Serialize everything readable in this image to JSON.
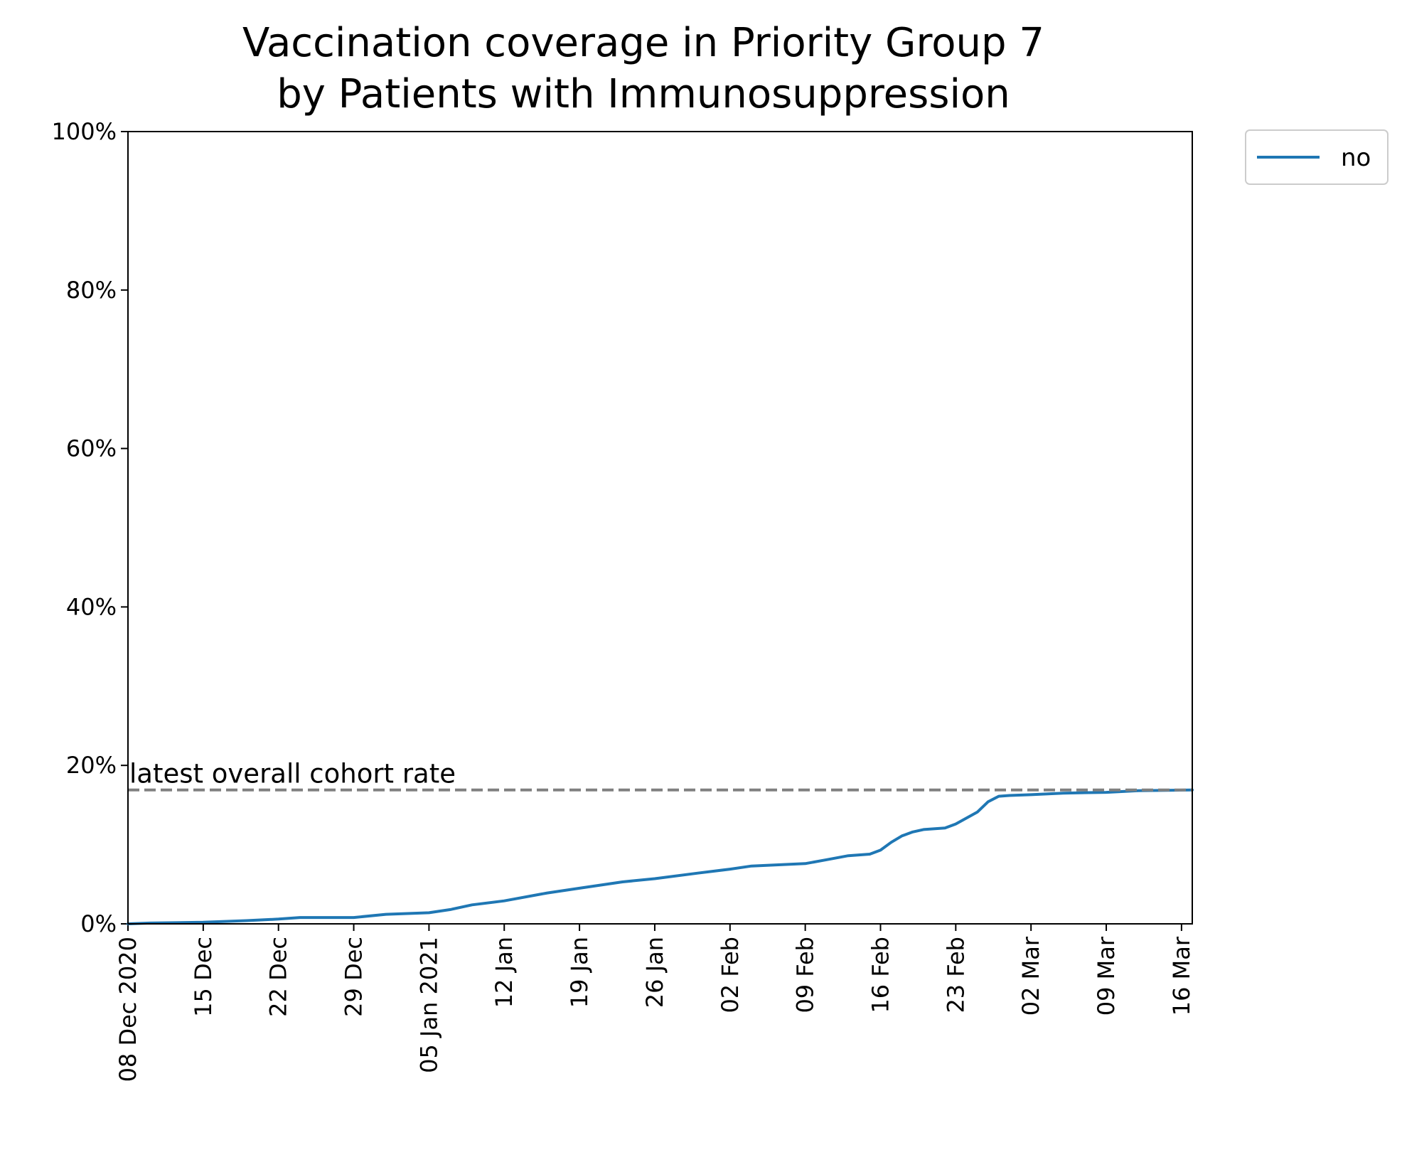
{
  "chart_data": {
    "type": "line",
    "title_line1": "Vaccination coverage in Priority Group 7",
    "title_line2": "by Patients with Immunosuppression",
    "xlabel": "",
    "ylabel": "",
    "xlim": [
      "2020-12-08",
      "2021-03-17"
    ],
    "ylim": [
      0,
      100
    ],
    "y_ticks": [
      {
        "value": 0,
        "label": "0%"
      },
      {
        "value": 20,
        "label": "20%"
      },
      {
        "value": 40,
        "label": "40%"
      },
      {
        "value": 60,
        "label": "60%"
      },
      {
        "value": 80,
        "label": "80%"
      },
      {
        "value": 100,
        "label": "100%"
      }
    ],
    "x_ticks": [
      {
        "date": "2020-12-08",
        "label": "08 Dec 2020"
      },
      {
        "date": "2020-12-15",
        "label": "15 Dec"
      },
      {
        "date": "2020-12-22",
        "label": "22 Dec"
      },
      {
        "date": "2020-12-29",
        "label": "29 Dec"
      },
      {
        "date": "2021-01-05",
        "label": "05 Jan 2021"
      },
      {
        "date": "2021-01-12",
        "label": "12 Jan"
      },
      {
        "date": "2021-01-19",
        "label": "19 Jan"
      },
      {
        "date": "2021-01-26",
        "label": "26 Jan"
      },
      {
        "date": "2021-02-02",
        "label": "02 Feb"
      },
      {
        "date": "2021-02-09",
        "label": "09 Feb"
      },
      {
        "date": "2021-02-16",
        "label": "16 Feb"
      },
      {
        "date": "2021-02-23",
        "label": "23 Feb"
      },
      {
        "date": "2021-03-02",
        "label": "02 Mar"
      },
      {
        "date": "2021-03-09",
        "label": "09 Mar"
      },
      {
        "date": "2021-03-16",
        "label": "16 Mar"
      }
    ],
    "reference_line": {
      "value": 16.9,
      "label": "latest overall cohort rate",
      "color": "#808080"
    },
    "legend": {
      "placement": "outside-top-right"
    },
    "grid": false,
    "series": [
      {
        "name": "no",
        "color": "#1f77b4",
        "points": [
          [
            "2020-12-08",
            0.0
          ],
          [
            "2020-12-10",
            0.1
          ],
          [
            "2020-12-15",
            0.2
          ],
          [
            "2020-12-19",
            0.4
          ],
          [
            "2020-12-22",
            0.6
          ],
          [
            "2020-12-24",
            0.8
          ],
          [
            "2020-12-29",
            0.8
          ],
          [
            "2021-01-01",
            1.2
          ],
          [
            "2021-01-05",
            1.4
          ],
          [
            "2021-01-07",
            1.8
          ],
          [
            "2021-01-09",
            2.4
          ],
          [
            "2021-01-12",
            2.9
          ],
          [
            "2021-01-16",
            3.9
          ],
          [
            "2021-01-19",
            4.5
          ],
          [
            "2021-01-23",
            5.3
          ],
          [
            "2021-01-26",
            5.7
          ],
          [
            "2021-01-30",
            6.4
          ],
          [
            "2021-02-02",
            6.9
          ],
          [
            "2021-02-04",
            7.3
          ],
          [
            "2021-02-09",
            7.6
          ],
          [
            "2021-02-11",
            8.1
          ],
          [
            "2021-02-13",
            8.6
          ],
          [
            "2021-02-15",
            8.8
          ],
          [
            "2021-02-16",
            9.3
          ],
          [
            "2021-02-17",
            10.3
          ],
          [
            "2021-02-18",
            11.1
          ],
          [
            "2021-02-19",
            11.6
          ],
          [
            "2021-02-20",
            11.9
          ],
          [
            "2021-02-22",
            12.1
          ],
          [
            "2021-02-23",
            12.6
          ],
          [
            "2021-02-25",
            14.1
          ],
          [
            "2021-02-26",
            15.4
          ],
          [
            "2021-02-27",
            16.1
          ],
          [
            "2021-02-28",
            16.2
          ],
          [
            "2021-03-02",
            16.3
          ],
          [
            "2021-03-05",
            16.5
          ],
          [
            "2021-03-09",
            16.6
          ],
          [
            "2021-03-12",
            16.8
          ],
          [
            "2021-03-17",
            16.9
          ]
        ]
      }
    ]
  }
}
